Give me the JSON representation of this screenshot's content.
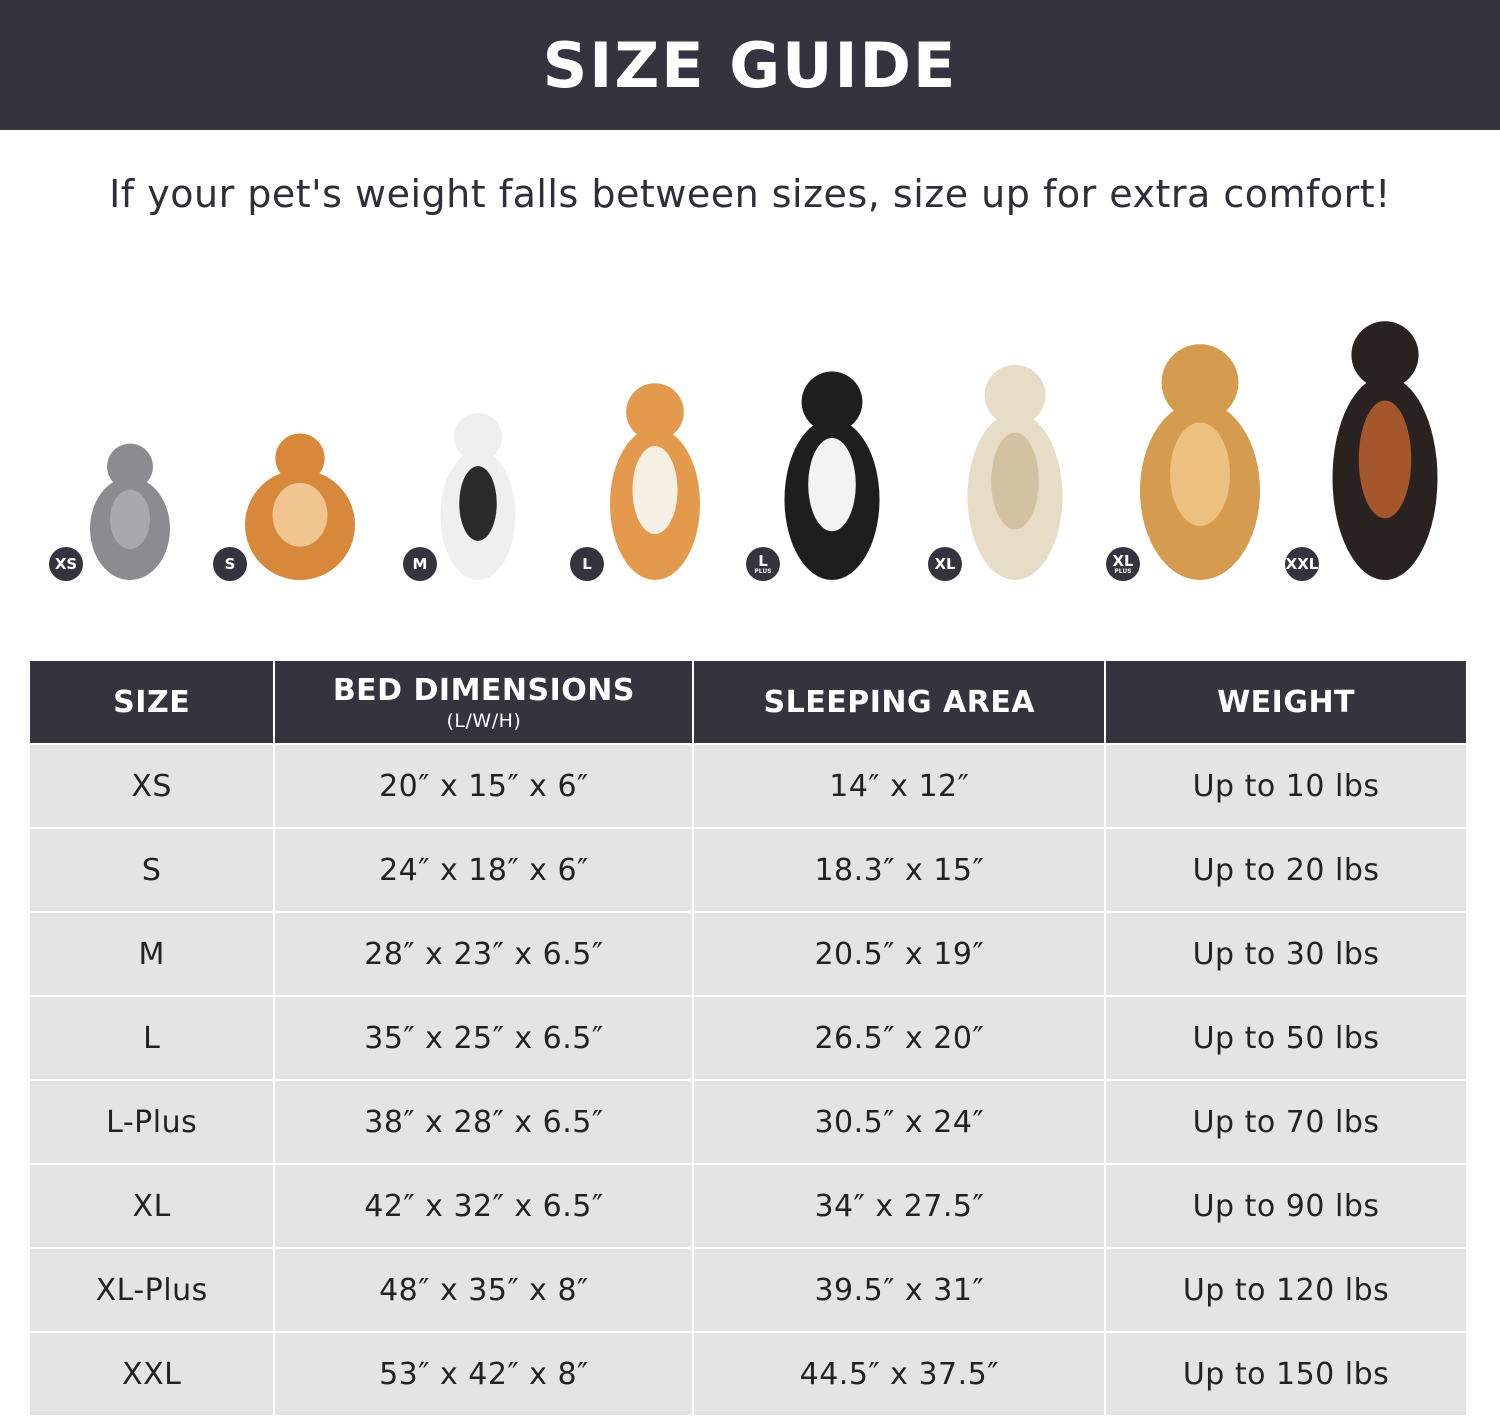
{
  "title": "SIZE GUIDE",
  "tip": "If your pet's weight falls between sizes, size up for extra comfort!",
  "colors": {
    "dark": "#34343f",
    "cell": "#e4e4e4"
  },
  "pets": [
    {
      "badge": "XS",
      "plus": "",
      "animal": "cat"
    },
    {
      "badge": "S",
      "plus": "",
      "animal": "pomeranian"
    },
    {
      "badge": "M",
      "plus": "",
      "animal": "french-bulldog"
    },
    {
      "badge": "L",
      "plus": "",
      "animal": "shiba-inu"
    },
    {
      "badge": "L",
      "plus": "PLUS",
      "animal": "border-collie"
    },
    {
      "badge": "XL",
      "plus": "",
      "animal": "labrador"
    },
    {
      "badge": "XL",
      "plus": "PLUS",
      "animal": "golden-retriever"
    },
    {
      "badge": "XXL",
      "plus": "",
      "animal": "doberman"
    }
  ],
  "table": {
    "headers": {
      "size": "SIZE",
      "bed": "BED DIMENSIONS",
      "bed_sub": "(L/W/H)",
      "area": "SLEEPING AREA",
      "weight": "WEIGHT"
    },
    "rows": [
      {
        "size": "XS",
        "bed": "20″ x 15″ x 6″",
        "area": "14″ x 12″",
        "weight": "Up to 10 lbs"
      },
      {
        "size": "S",
        "bed": "24″ x 18″ x 6″",
        "area": "18.3″ x 15″",
        "weight": "Up to 20 lbs"
      },
      {
        "size": "M",
        "bed": "28″ x 23″ x 6.5″",
        "area": "20.5″ x 19″",
        "weight": "Up to 30 lbs"
      },
      {
        "size": "L",
        "bed": "35″ x 25″ x 6.5″",
        "area": "26.5″ x 20″",
        "weight": "Up to 50 lbs"
      },
      {
        "size": "L-Plus",
        "bed": "38″ x 28″ x 6.5″",
        "area": "30.5″ x 24″",
        "weight": "Up to 70 lbs"
      },
      {
        "size": "XL",
        "bed": "42″ x 32″ x 6.5″",
        "area": "34″ x 27.5″",
        "weight": "Up to 90 lbs"
      },
      {
        "size": "XL-Plus",
        "bed": "48″ x 35″ x 8″",
        "area": "39.5″ x 31″",
        "weight": "Up to 120 lbs"
      },
      {
        "size": "XXL",
        "bed": "53″ x 42″ x 8″",
        "area": "44.5″ x 37.5″",
        "weight": "Up to 150 lbs"
      }
    ]
  }
}
